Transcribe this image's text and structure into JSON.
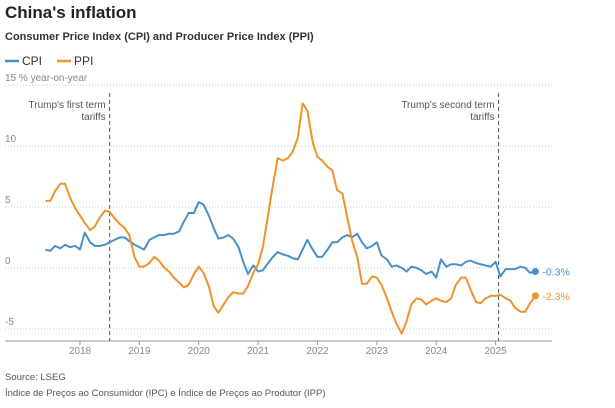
{
  "chart_data": {
    "type": "line",
    "title": "China's inflation",
    "subtitle": "Consumer Price Index (CPI) and Producer Price Index (PPI)",
    "source": "Source: LSEG",
    "note": "Índice de Preços ao Consumidor (IPC) e Índice de Preços ao Produtor (IPP)",
    "x": [
      2017.42,
      2017.5,
      2017.58,
      2017.67,
      2017.75,
      2017.83,
      2017.92,
      2018,
      2018.08,
      2018.17,
      2018.25,
      2018.33,
      2018.42,
      2018.5,
      2018.58,
      2018.67,
      2018.75,
      2018.83,
      2018.92,
      2019,
      2019.08,
      2019.17,
      2019.25,
      2019.33,
      2019.42,
      2019.5,
      2019.58,
      2019.67,
      2019.75,
      2019.83,
      2019.92,
      2020,
      2020.08,
      2020.17,
      2020.25,
      2020.33,
      2020.42,
      2020.5,
      2020.58,
      2020.67,
      2020.75,
      2020.83,
      2020.92,
      2021,
      2021.08,
      2021.17,
      2021.25,
      2021.33,
      2021.42,
      2021.5,
      2021.58,
      2021.67,
      2021.75,
      2021.83,
      2021.92,
      2022,
      2022.08,
      2022.17,
      2022.25,
      2022.33,
      2022.42,
      2022.5,
      2022.58,
      2022.67,
      2022.75,
      2022.83,
      2022.92,
      2023,
      2023.08,
      2023.17,
      2023.25,
      2023.33,
      2023.42,
      2023.5,
      2023.58,
      2023.67,
      2023.75,
      2023.83,
      2023.92,
      2024,
      2024.08,
      2024.17,
      2024.25,
      2024.33,
      2024.42,
      2024.5,
      2024.58,
      2024.67,
      2024.75,
      2024.83,
      2024.92,
      2025,
      2025.08,
      2025.17,
      2025.25,
      2025.33,
      2025.42,
      2025.5,
      2025.58,
      2025.67
    ],
    "series": [
      {
        "name": "CPI",
        "color": "#4a90c8",
        "end_label": "-0.3%",
        "values": [
          1.5,
          1.4,
          1.8,
          1.6,
          1.9,
          1.7,
          1.8,
          1.5,
          2.9,
          2.1,
          1.8,
          1.8,
          1.9,
          2.1,
          2.3,
          2.5,
          2.5,
          2.2,
          1.9,
          1.7,
          1.5,
          2.3,
          2.5,
          2.7,
          2.7,
          2.8,
          2.8,
          3.0,
          3.8,
          4.5,
          4.5,
          5.4,
          5.2,
          4.3,
          3.3,
          2.4,
          2.5,
          2.7,
          2.4,
          1.7,
          0.5,
          -0.5,
          0.2,
          -0.3,
          -0.2,
          0.4,
          0.9,
          1.3,
          1.1,
          1.0,
          0.8,
          0.7,
          1.5,
          2.3,
          1.5,
          0.9,
          0.9,
          1.5,
          2.1,
          2.1,
          2.5,
          2.7,
          2.5,
          2.8,
          2.1,
          1.6,
          1.8,
          2.1,
          1.0,
          0.7,
          0.1,
          0.2,
          0.0,
          -0.3,
          0.1,
          0.0,
          -0.2,
          -0.5,
          -0.3,
          -0.8,
          0.7,
          0.1,
          0.3,
          0.3,
          0.2,
          0.5,
          0.6,
          0.4,
          0.3,
          0.2,
          0.1,
          0.5,
          -0.7,
          -0.1,
          -0.1,
          -0.1,
          0.1,
          0.0,
          -0.4,
          -0.3
        ]
      },
      {
        "name": "PPI",
        "color": "#f0922b",
        "end_label": "-2.3%",
        "values": [
          5.5,
          5.5,
          6.3,
          6.9,
          6.9,
          5.8,
          4.9,
          4.3,
          3.7,
          3.1,
          3.4,
          4.1,
          4.7,
          4.6,
          4.1,
          3.6,
          3.3,
          2.7,
          0.9,
          0.1,
          0.1,
          0.4,
          0.9,
          0.6,
          0.0,
          -0.3,
          -0.8,
          -1.2,
          -1.6,
          -1.4,
          -0.5,
          0.1,
          -0.4,
          -1.5,
          -3.1,
          -3.7,
          -3.0,
          -2.4,
          -2.0,
          -2.1,
          -2.1,
          -1.5,
          -0.4,
          0.3,
          1.7,
          4.4,
          6.8,
          9.0,
          8.8,
          9.0,
          9.5,
          10.7,
          13.5,
          12.9,
          10.3,
          9.1,
          8.8,
          8.3,
          8.0,
          6.4,
          6.1,
          4.2,
          2.3,
          0.9,
          -1.3,
          -1.3,
          -0.7,
          -0.8,
          -1.4,
          -2.5,
          -3.6,
          -4.6,
          -5.4,
          -4.4,
          -3.0,
          -2.5,
          -2.6,
          -3.0,
          -2.7,
          -2.5,
          -2.7,
          -2.8,
          -2.5,
          -1.4,
          -0.8,
          -0.8,
          -1.8,
          -2.8,
          -2.9,
          -2.5,
          -2.3,
          -2.3,
          -2.2,
          -2.5,
          -2.7,
          -3.3,
          -3.6,
          -3.6,
          -2.9,
          -2.3
        ]
      }
    ],
    "xlim": [
      2017.3,
      2025.95
    ],
    "xticks": [
      2018,
      2019,
      2020,
      2021,
      2022,
      2023,
      2024,
      2025
    ],
    "ylim": [
      -6,
      15.5
    ],
    "yticks": [
      {
        "value": 15,
        "label": "15 % year-on-year"
      },
      10,
      5,
      0,
      -5
    ],
    "grid": true,
    "annotations": [
      {
        "x": 2018.5,
        "lines": [
          "Trump's first term",
          "tariffs"
        ]
      },
      {
        "x": 2025.05,
        "lines": [
          "Trump's second term",
          "tariffs"
        ]
      }
    ]
  }
}
